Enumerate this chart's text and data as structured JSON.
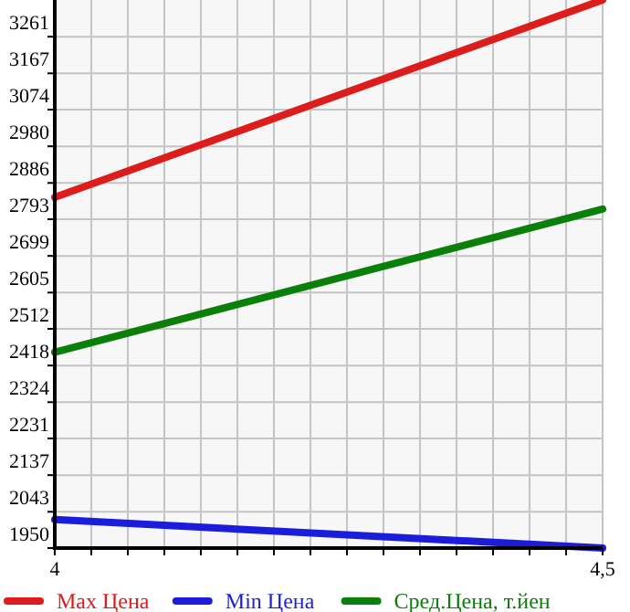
{
  "chart_data": {
    "type": "line",
    "x": [
      4,
      4.5
    ],
    "series": [
      {
        "name": "Max Цена",
        "color": "#dd1c1c",
        "values": [
          2849,
          3355
        ]
      },
      {
        "name": "Min Цена",
        "color": "#1c1cdd",
        "values": [
          2023,
          1950
        ]
      },
      {
        "name": "Сред.Цена, т.йен",
        "color": "#0a800a",
        "values": [
          2452,
          2819
        ]
      }
    ],
    "xlim": [
      4,
      4.5
    ],
    "xticks": [
      {
        "value": 4,
        "label": "4"
      },
      {
        "value": 4.0333,
        "label": null
      },
      {
        "value": 4.0667,
        "label": null
      },
      {
        "value": 4.1,
        "label": null
      },
      {
        "value": 4.1333,
        "label": null
      },
      {
        "value": 4.1667,
        "label": null
      },
      {
        "value": 4.2,
        "label": null
      },
      {
        "value": 4.2333,
        "label": null
      },
      {
        "value": 4.2667,
        "label": null
      },
      {
        "value": 4.3,
        "label": null
      },
      {
        "value": 4.3333,
        "label": null
      },
      {
        "value": 4.3667,
        "label": null
      },
      {
        "value": 4.4,
        "label": null
      },
      {
        "value": 4.4333,
        "label": null
      },
      {
        "value": 4.4667,
        "label": null
      },
      {
        "value": 4.5,
        "label": "4,5"
      }
    ],
    "ylim": [
      1950,
      3355
    ],
    "yticks": [
      1950,
      2043,
      2137,
      2231,
      2324,
      2418,
      2512,
      2605,
      2699,
      2793,
      2886,
      2980,
      3074,
      3167,
      3261
    ],
    "grid": true,
    "legend": "bottom",
    "marker": "none",
    "line_style": "solid"
  }
}
